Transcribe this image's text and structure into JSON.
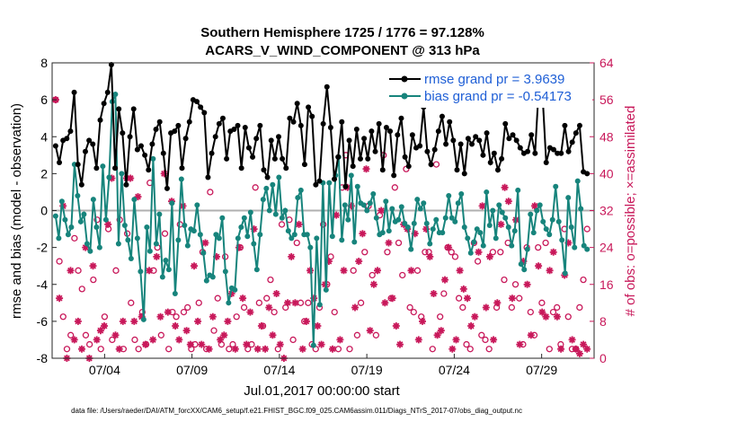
{
  "chart_data": {
    "type": "line",
    "title_line1": "Southern Hemisphere 1725 / 1776 = 97.128%",
    "title_line2": "ACARS_V_WIND_COMPONENT @ 313 hPa",
    "xlabel": "Jul.01,2017 00:00:00 start",
    "ylabel": "rmse and bias (model - observation)",
    "ylabel_right": "# of obs: o=possible; ×=assimilated",
    "x_ticks": [
      "07/04",
      "07/09",
      "07/14",
      "07/19",
      "07/24",
      "07/29"
    ],
    "x_tick_days": [
      4,
      9,
      14,
      19,
      24,
      29
    ],
    "xlim": [
      1,
      32
    ],
    "ylim": [
      -8,
      8
    ],
    "y_ticks": [
      "-8",
      "-6",
      "-4",
      "-2",
      "0",
      "2",
      "4",
      "6",
      "8"
    ],
    "ylim_right": [
      0,
      64
    ],
    "y_ticks_right": [
      "0",
      "8",
      "16",
      "24",
      "32",
      "40",
      "48",
      "56",
      "64"
    ],
    "series": [
      {
        "name": "rmse grand pr = 3.9639",
        "color": "#000000",
        "values": [
          3.5,
          2.6,
          3.8,
          3.9,
          4.3,
          6.4,
          2.5,
          1.4,
          3.2,
          3.8,
          3.6,
          2.3,
          4.9,
          5.8,
          6.4,
          7.9,
          2.3,
          5.5,
          4.2,
          1.4,
          4.0,
          5.5,
          3.3,
          3.5,
          3.0,
          2.2,
          3.6,
          4.4,
          4.8,
          3.1,
          1.2,
          4.2,
          4.3,
          4.6,
          2.3,
          3.9,
          4.8,
          6.0,
          5.9,
          5.6,
          5.3,
          1.8,
          3.1,
          4.0,
          4.7,
          5.0,
          2.8,
          4.3,
          4.4,
          4.6,
          2.3,
          4.5,
          3.4,
          2.9,
          3.9,
          4.6,
          2.2,
          1.8,
          3.8,
          2.8,
          4.0,
          2.8,
          2.3,
          5.0,
          4.8,
          5.8,
          4.6,
          2.5,
          5.6,
          5.1,
          1.4,
          1.6,
          4.7,
          6.7,
          4.5,
          1.7,
          2.9,
          4.8,
          1.3,
          3.8,
          2.4,
          4.4,
          2.8,
          3.9,
          2.8,
          4.3,
          3.2,
          4.7,
          2.2,
          4.5,
          4.3,
          1.9,
          4.1,
          5.0,
          2.9,
          2.4,
          4.1,
          3.4,
          3.5,
          5.6,
          3.2,
          2.5,
          3.3,
          4.3,
          5.1,
          3.6,
          4.8,
          3.8,
          2.2,
          3.6,
          2.0,
          3.9,
          3.6,
          4.0,
          3.8,
          3.0,
          4.2,
          2.6,
          3.1,
          2.2,
          2.8,
          4.7,
          3.9,
          4.1,
          3.8,
          3.4,
          3.1,
          3.2,
          4.1,
          3.1,
          6.7,
          6.3,
          2.6,
          3.4,
          3.3,
          3.1,
          3.1,
          4.6,
          3.2,
          3.7,
          4.2,
          4.6,
          2.1,
          2.0
        ]
      },
      {
        "name": "bias grand pr = -0.54173",
        "color": "#17847c",
        "values": [
          -0.3,
          -1.5,
          0.5,
          -0.5,
          -1.3,
          -0.9,
          2.5,
          0.8,
          -0.6,
          -0.2,
          -1.8,
          -2.2,
          0.6,
          -0.9,
          -2.0,
          2.4,
          -0.5,
          1.8,
          5.9,
          6.3,
          -1.8,
          2.0,
          -0.8,
          -1.6,
          -2.6,
          0.6,
          -1.5,
          -3.3,
          -5.9,
          -0.9,
          -2.2,
          2.8,
          -1.8,
          -0.2,
          -3.6,
          -2.7,
          -3.2,
          0.4,
          -4.5,
          -1.6,
          1.7,
          -0.8,
          -1.9,
          -1.0,
          -1.1,
          0.3,
          -1.3,
          -2.3,
          -3.8,
          -3.5,
          -3.6,
          -1.3,
          -1.5,
          -0.4,
          -3.3,
          -5.0,
          -4.2,
          -4.3,
          -1.5,
          -0.9,
          -0.4,
          -1.4,
          -0.1,
          -1.8,
          -3.2,
          -1.3,
          0.6,
          1.2,
          0.0,
          1.4,
          -0.2,
          1.8,
          -0.4,
          0.0,
          -1.1,
          -1.5,
          -1.3,
          0.7,
          1.1,
          -1.3,
          -1.3,
          -2.0,
          -7.3,
          -1.5,
          -5.1,
          1.5,
          -4.3,
          1.5,
          -1.4,
          1.9,
          2.9,
          -1.6,
          0.3,
          -0.5,
          1.9,
          -1.7,
          1.3,
          0.4,
          0.3,
          0.0,
          0.4,
          0.9,
          -0.4,
          -1.3,
          -1.2,
          0.5,
          -1.1,
          0.1,
          -0.6,
          -0.5,
          0.2,
          -0.7,
          -0.9,
          -2.1,
          -0.7,
          0.6,
          0.1,
          0.4,
          -0.7,
          -1.8,
          -1.0,
          -0.5,
          -1.2,
          -1.2,
          -0.4,
          0.8,
          -0.4,
          -0.6,
          0.4,
          0.9,
          -0.9,
          -1.5,
          -2.3,
          -1.7,
          -1.0,
          -1.2,
          -1.9,
          1.0,
          -0.8,
          0.0,
          -1.5,
          0.3,
          -0.1,
          -0.4,
          -0.9,
          -1.9,
          -1.1,
          1.1,
          -2.9,
          -3.2,
          -2.1,
          -0.2,
          -1.2,
          0.0,
          0.3,
          -0.6,
          -1.0,
          -1.3,
          -0.5,
          1.3,
          -0.6,
          -1.6,
          -3.4,
          0.7,
          -0.9,
          -2.0,
          1.6,
          0.1,
          -1.9,
          -2.1
        ]
      },
      {
        "name": "obs possible (o)",
        "color": "#c8185a",
        "values": [
          56,
          21,
          9,
          2,
          5,
          26,
          19,
          15,
          5,
          3,
          17,
          30,
          2,
          9,
          28,
          4,
          19,
          30,
          2,
          27,
          12,
          4,
          2,
          10,
          3,
          38,
          19,
          24,
          5,
          27,
          2,
          10,
          9,
          29,
          10,
          11,
          2,
          3,
          12,
          23,
          2,
          36,
          6,
          13,
          3,
          22,
          2,
          3,
          9,
          24,
          11,
          2,
          3,
          37,
          12,
          7,
          13,
          17,
          10,
          2,
          29,
          11,
          30,
          4,
          25,
          12,
          8,
          12,
          3,
          2,
          11,
          29,
          16,
          22,
          10,
          2,
          37,
          44,
          2,
          19,
          5,
          12,
          23,
          33,
          18,
          5,
          31,
          44,
          23,
          13,
          37,
          25,
          18,
          41,
          11,
          10,
          19,
          9,
          23,
          23,
          2,
          42,
          9,
          14,
          24,
          23,
          22,
          13,
          11,
          3,
          2,
          25,
          21,
          5,
          4,
          2,
          23,
          11,
          23,
          17,
          25,
          11,
          16,
          13,
          3,
          24,
          10,
          5,
          24,
          12,
          25,
          2,
          10,
          11,
          3,
          28,
          9,
          2,
          2,
          11,
          17,
          28
        ]
      },
      {
        "name": "obs assimilated (×)",
        "color": "#c8185a",
        "values": [
          56,
          13,
          33,
          0,
          19,
          4,
          8,
          2,
          24,
          0,
          20,
          4,
          6,
          7,
          29,
          39,
          5,
          2,
          8,
          39,
          39,
          8,
          35,
          9,
          3,
          19,
          4,
          22,
          9,
          40,
          10,
          34,
          7,
          4,
          33,
          6,
          3,
          20,
          8,
          3,
          25,
          2,
          9,
          22,
          4,
          5,
          8,
          14,
          2,
          24,
          13,
          3,
          10,
          28,
          2,
          7,
          2,
          11,
          5,
          14,
          3,
          0,
          12,
          22,
          12,
          29,
          2,
          8,
          19,
          13,
          7,
          3,
          16,
          21,
          2,
          31,
          4,
          19,
          37,
          33,
          11,
          21,
          27,
          41,
          6,
          16,
          19,
          32,
          12,
          25,
          13,
          7,
          3,
          29,
          28,
          19,
          27,
          4,
          8,
          28,
          22,
          14,
          5,
          6,
          17,
          24,
          2,
          4,
          19,
          15,
          13,
          7,
          9,
          23,
          33,
          11,
          22,
          4,
          12,
          29,
          37,
          34,
          13,
          30,
          3,
          21,
          16,
          5,
          33,
          20,
          10,
          9,
          19,
          23,
          9,
          2,
          18,
          25,
          4,
          2,
          1,
          3,
          2
        ]
      }
    ]
  }
}
